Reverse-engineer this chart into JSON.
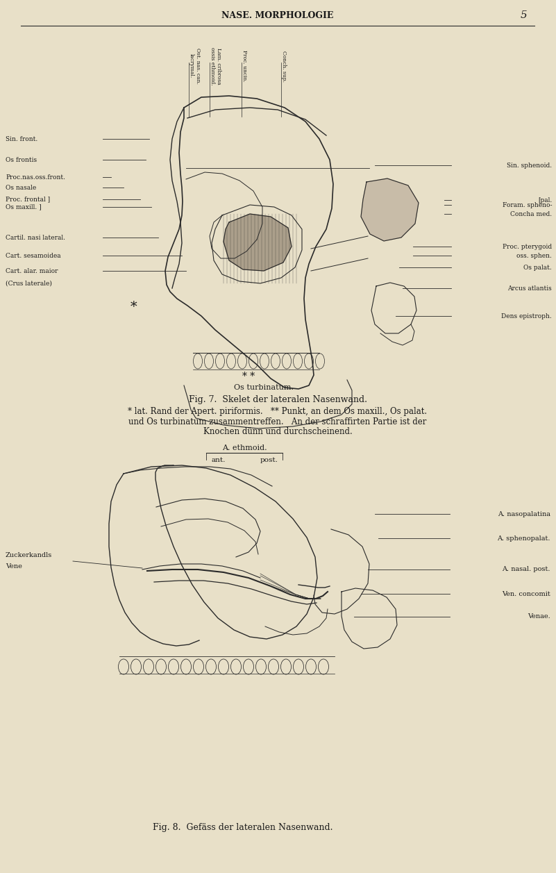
{
  "bg_color": "#e8e0c8",
  "header_text": "NASE. MORPHOLOGIE",
  "page_num": "5",
  "fig7_caption": "Fig. 7.  Skelet der lateralen Nasenwand.",
  "fig7_subcaption1": "* lat. Rand der Apert. piriformis.   ** Punkt, an dem Os maxill., Os palat.",
  "fig7_subcaption2": "und Os turbinatum zusammentreffen.   An der schraffirten Partie ist der",
  "fig7_subcaption3": "Knochen dünn und durchscheinend.",
  "fig8_caption": "Fig. 8.  Gefäss der lateralen Nasenwand.",
  "ethmoid_label": "A. ethmoid.",
  "ethmoid_ant": "ant.",
  "ethmoid_post": "post.",
  "os_turbinatum": "Os turbinatum.",
  "double_star": "* *",
  "text_color": "#1a1a1a",
  "line_color": "#2a2a2a",
  "left_labels_fig7": [
    [
      200,
      "Sin. front.",
      215
    ],
    [
      230,
      "Os frontis",
      210
    ],
    [
      255,
      "Proc.nas.oss.front.",
      160
    ],
    [
      270,
      "Os nasale",
      178
    ],
    [
      287,
      "Proc. frontal ]",
      202
    ],
    [
      298,
      "Os maxill. ]",
      218
    ],
    [
      342,
      "Cartil. nasi lateral.",
      228
    ],
    [
      368,
      "Cart. sesamoidea",
      262
    ],
    [
      390,
      "Cart. alar. maior",
      268
    ],
    [
      408,
      "(Crus laterale)",
      null
    ]
  ],
  "right_labels_fig7": [
    [
      238,
      "Sin. sphenoid.",
      540
    ],
    [
      288,
      "[pal.",
      640
    ],
    [
      295,
      "Foram. spheno-",
      640
    ],
    [
      308,
      "Concha med.",
      640
    ],
    [
      355,
      "Proc. pterygoid",
      595
    ],
    [
      368,
      "oss. sphen.",
      595
    ],
    [
      385,
      "Os palat.",
      575
    ],
    [
      415,
      "Arcus atlantis",
      580
    ],
    [
      455,
      "Dens epistroph.",
      570
    ]
  ],
  "right_labels_fig8": [
    [
      740,
      "A. nasopalatina",
      540
    ],
    [
      775,
      "A. sphenopalat.",
      545
    ],
    [
      820,
      "A. nasal. post.",
      530
    ],
    [
      855,
      "Ven. concomit",
      520
    ],
    [
      888,
      "Venae.",
      510
    ]
  ],
  "left_labels_fig8": [
    [
      800,
      "Zuckerkandls"
    ],
    [
      815,
      "Vene"
    ]
  ]
}
